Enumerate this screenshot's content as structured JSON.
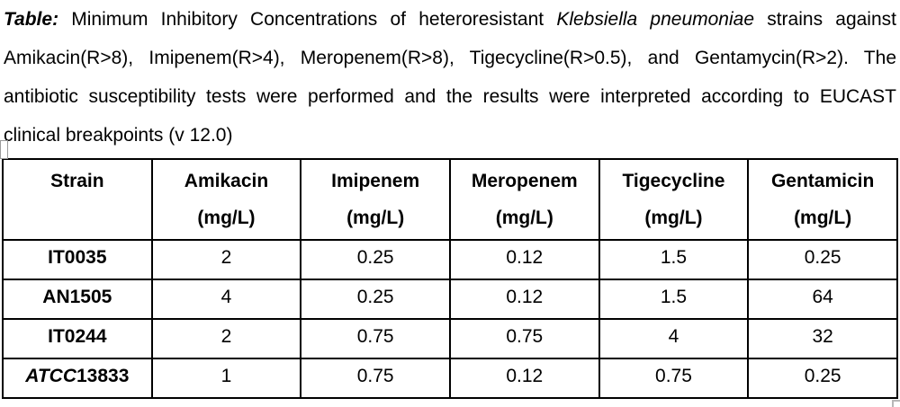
{
  "caption": {
    "line1": {
      "label": "Table:",
      "text1": " Minimum Inhibitory Concentrations of heteroresistant ",
      "species": "Klebsiella pneumoniae",
      "text2": " strains against"
    },
    "line2": "Amikacin(R>8), Imipenem(R>4), Meropenem(R>8), Tigecycline(R>0.5), and Gentamycin(R>2). The",
    "line3": "antibiotic susceptibility tests were performed and the results were interpreted according to EUCAST",
    "line4": "clinical breakpoints (v 12.0)"
  },
  "table": {
    "columns": [
      {
        "name": "Strain",
        "unit": ""
      },
      {
        "name": "Amikacin",
        "unit": "(mg/L)"
      },
      {
        "name": "Imipenem",
        "unit": "(mg/L)"
      },
      {
        "name": "Meropenem",
        "unit": "(mg/L)"
      },
      {
        "name": "Tigecycline",
        "unit": "(mg/L)"
      },
      {
        "name": "Gentamicin",
        "unit": "(mg/L)"
      }
    ],
    "rows": [
      {
        "strain_italic": "",
        "strain": "IT0035",
        "values": [
          "2",
          "0.25",
          "0.12",
          "1.5",
          "0.25"
        ]
      },
      {
        "strain_italic": "",
        "strain": "AN1505",
        "values": [
          "4",
          "0.25",
          "0.12",
          "1.5",
          "64"
        ]
      },
      {
        "strain_italic": "",
        "strain": "IT0244",
        "values": [
          "2",
          "0.75",
          "0.75",
          "4",
          "32"
        ]
      },
      {
        "strain_italic": "ATCC",
        "strain": "13833",
        "values": [
          "1",
          "0.75",
          "0.12",
          "0.75",
          "0.25"
        ]
      }
    ]
  },
  "colors": {
    "text": "#000000",
    "border": "#000000",
    "background": "#ffffff",
    "artifact_gray": "#b8b8b8"
  }
}
